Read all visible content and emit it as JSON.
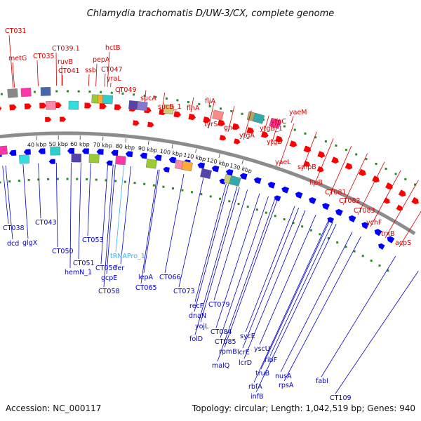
{
  "title": "Chlamydia trachomatis D/UW-3/CX, complete genome",
  "footer": {
    "accession": "Accession: NC_000117",
    "summary": "Topology: circular; Length: 1,042,519 bp; Genes: 940"
  },
  "colors": {
    "forward_label": "#d40000",
    "reverse_label": "#0000c8",
    "trna_label": "#33b0ff",
    "backbone": "#8c8c8c",
    "gc_dots": "#2a8a2a",
    "forward_gene": "#ff0000",
    "reverse_gene": "#0000ff"
  },
  "kbp_ticks": [
    "40 kbp",
    "50 kbp",
    "60 kbp",
    "70 kbp",
    "80 kbp",
    "90 kbp",
    "100 kbp",
    "110 kbp",
    "120 kbp",
    "130 kbp"
  ],
  "forward_labels": [
    {
      "text": "CT031"
    },
    {
      "text": "metG"
    },
    {
      "text": "CT035"
    },
    {
      "text": "CT039.1"
    },
    {
      "text": "ruvB"
    },
    {
      "text": "CT041"
    },
    {
      "text": "ssb"
    },
    {
      "text": "hctB"
    },
    {
      "text": "pepA"
    },
    {
      "text": "CT047"
    },
    {
      "text": "yraL"
    },
    {
      "text": "CT049"
    },
    {
      "text": "sucA"
    },
    {
      "text": "sucB_1"
    },
    {
      "text": "flhA"
    },
    {
      "text": "fliA"
    },
    {
      "text": "tyrS"
    },
    {
      "text": "gnd"
    },
    {
      "text": "ytgA"
    },
    {
      "text": "ytgB_1"
    },
    {
      "text": "ytgC"
    },
    {
      "text": "yaeM"
    },
    {
      "text": "ytgD"
    },
    {
      "text": "yaeL"
    },
    {
      "text": "smpB"
    },
    {
      "text": "ltuB"
    },
    {
      "text": "CT081"
    },
    {
      "text": "CT082"
    },
    {
      "text": "CT083"
    },
    {
      "text": "ychF"
    },
    {
      "text": "trxB"
    },
    {
      "text": "acpS"
    }
  ],
  "reverse_labels": [
    {
      "text": "CT038"
    },
    {
      "text": "dcd"
    },
    {
      "text": "glgX"
    },
    {
      "text": "CT043"
    },
    {
      "text": "CT050"
    },
    {
      "text": "CT053"
    },
    {
      "text": "CT051"
    },
    {
      "text": "hemN_1"
    },
    {
      "text": "tRNAPro_1"
    },
    {
      "text": "CT056"
    },
    {
      "text": "fer"
    },
    {
      "text": "gcpE"
    },
    {
      "text": "CT058"
    },
    {
      "text": "lepA"
    },
    {
      "text": "CT065"
    },
    {
      "text": "CT066"
    },
    {
      "text": "CT073"
    },
    {
      "text": "recF"
    },
    {
      "text": "CT079"
    },
    {
      "text": "dnaN"
    },
    {
      "text": "yojL"
    },
    {
      "text": "folD"
    },
    {
      "text": "CT084"
    },
    {
      "text": "CT085"
    },
    {
      "text": "rpmB"
    },
    {
      "text": "sycE"
    },
    {
      "text": "lcrE"
    },
    {
      "text": "yscU"
    },
    {
      "text": "malQ"
    },
    {
      "text": "lcrD"
    },
    {
      "text": "ribF"
    },
    {
      "text": "truB"
    },
    {
      "text": "nusA"
    },
    {
      "text": "rbfA"
    },
    {
      "text": "rpsA"
    },
    {
      "text": "infB"
    },
    {
      "text": "fabI"
    },
    {
      "text": "CT109"
    }
  ]
}
